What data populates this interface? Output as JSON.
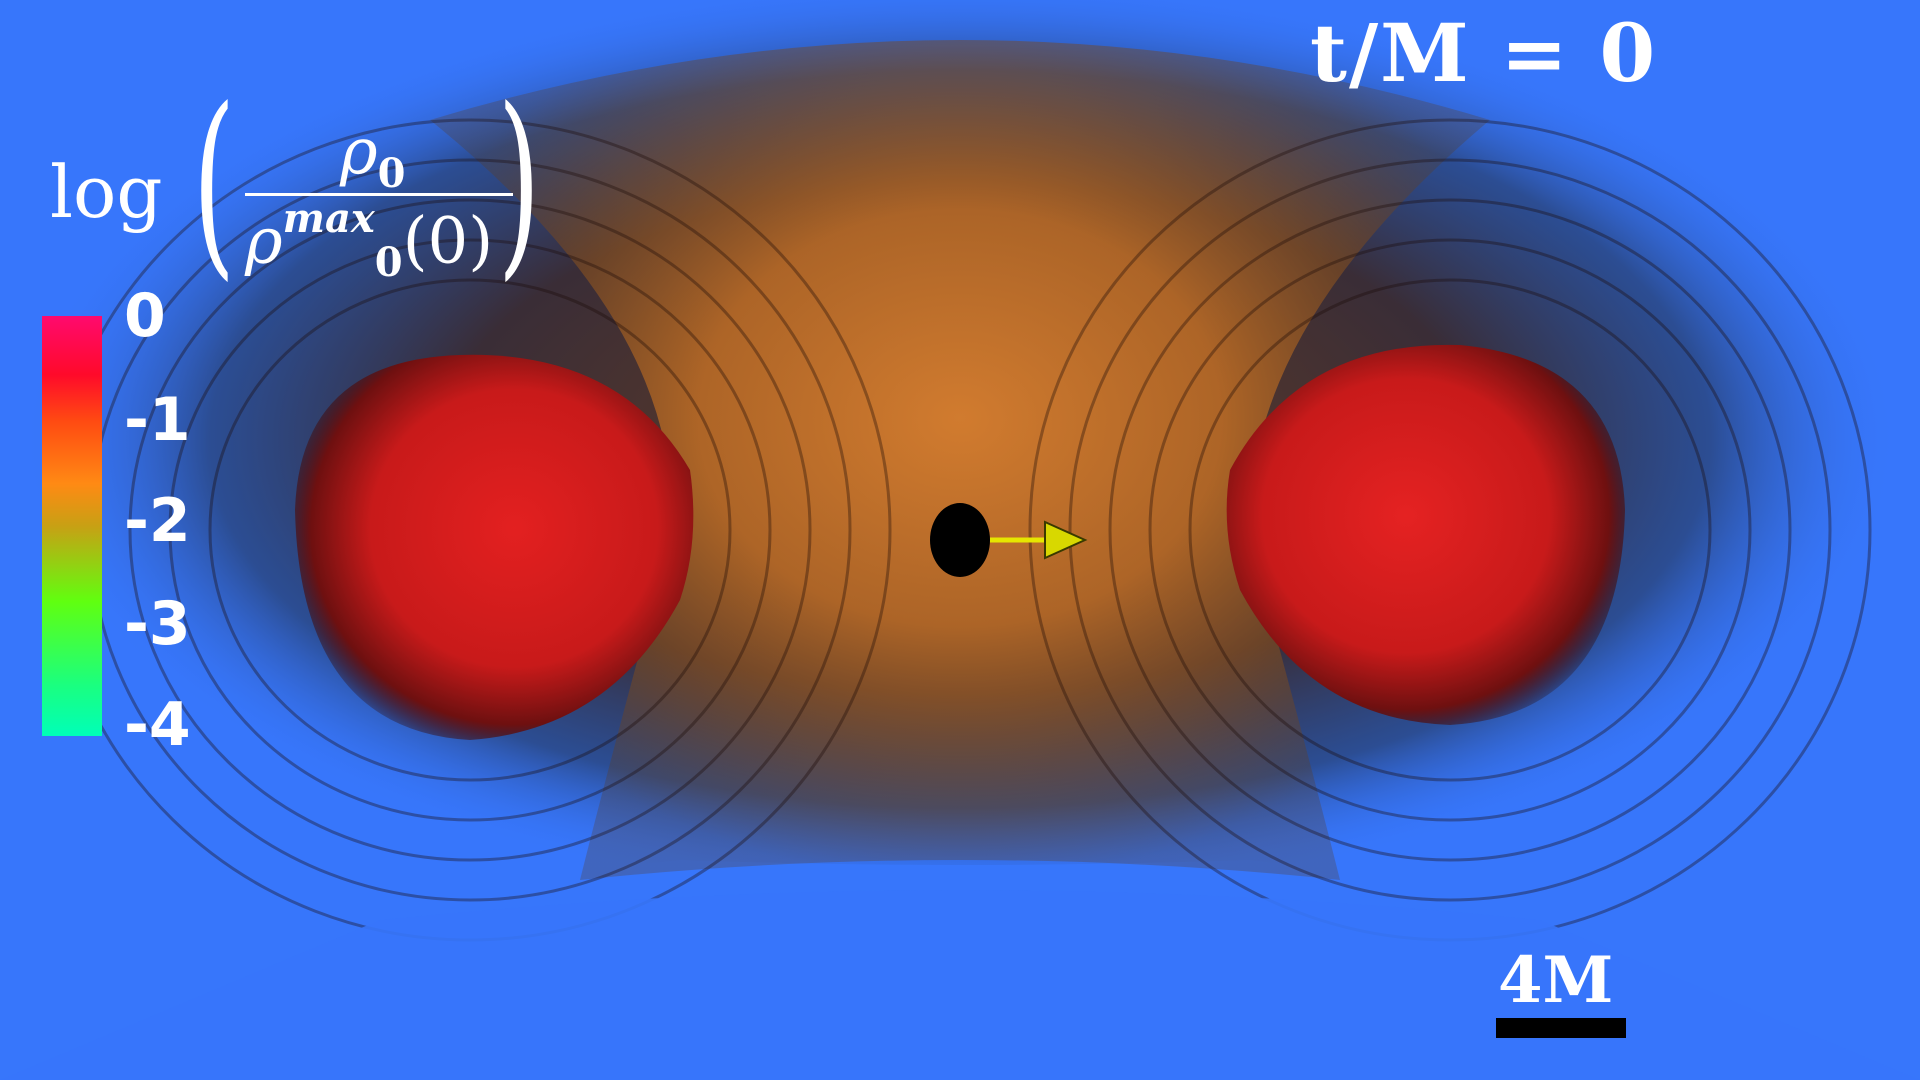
{
  "time_label": "t/M = 0",
  "colorbar": {
    "log_label": "log",
    "numerator": "ρ",
    "numerator_sub": "0",
    "denominator": "ρ",
    "denominator_sub": "0",
    "denominator_sup": "max",
    "denominator_arg": "(0)",
    "ticks": [
      "0",
      "-1",
      "-2",
      "-3",
      "-4"
    ]
  },
  "scale_bar_label": "4M",
  "colors": {
    "background": "#3776fb",
    "torus": "#e01c1c",
    "core": "#d87a2a",
    "arrow": "#e6e600",
    "black_hole": "#000000"
  },
  "icons": [
    "black-hole-icon",
    "velocity-arrow-icon"
  ]
}
